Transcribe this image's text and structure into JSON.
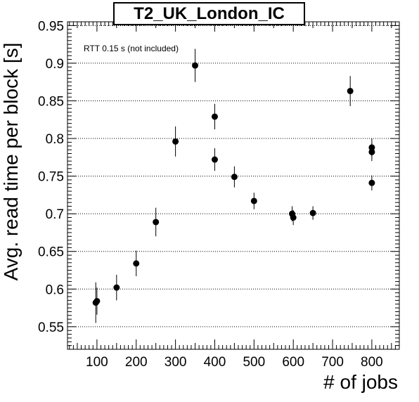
{
  "chart_data": {
    "type": "scatter",
    "title": "T2_UK_London_IC",
    "xlabel": "# of jobs",
    "ylabel": "Avg. read time per block [s]",
    "annotation": "RTT 0.15 s (not included)",
    "xlim": [
      25,
      870
    ],
    "ylim": [
      0.52,
      0.955
    ],
    "x_ticks": [
      100,
      200,
      300,
      400,
      500,
      600,
      700,
      800
    ],
    "y_ticks": [
      0.55,
      0.6,
      0.65,
      0.7,
      0.75,
      0.8,
      0.85,
      0.9,
      0.95
    ],
    "x_tick_labels": [
      "100",
      "200",
      "300",
      "400",
      "500",
      "600",
      "700",
      "800"
    ],
    "y_tick_labels": [
      "0.55",
      "0.6",
      "0.65",
      "0.7",
      "0.75",
      "0.8",
      "0.85",
      "0.9",
      "0.95"
    ],
    "grid": "horizontal dotted",
    "marker_color": "#000000",
    "points": [
      {
        "x": 97,
        "y": 0.582,
        "err": 0.027
      },
      {
        "x": 100,
        "y": 0.584,
        "err": 0.018
      },
      {
        "x": 150,
        "y": 0.602,
        "err": 0.017
      },
      {
        "x": 200,
        "y": 0.634,
        "err": 0.017
      },
      {
        "x": 250,
        "y": 0.689,
        "err": 0.019
      },
      {
        "x": 300,
        "y": 0.796,
        "err": 0.02
      },
      {
        "x": 350,
        "y": 0.897,
        "err": 0.022
      },
      {
        "x": 400,
        "y": 0.829,
        "err": 0.017
      },
      {
        "x": 400,
        "y": 0.772,
        "err": 0.015
      },
      {
        "x": 450,
        "y": 0.749,
        "err": 0.014
      },
      {
        "x": 500,
        "y": 0.717,
        "err": 0.011
      },
      {
        "x": 597,
        "y": 0.7,
        "err": 0.01
      },
      {
        "x": 600,
        "y": 0.695,
        "err": 0.01
      },
      {
        "x": 650,
        "y": 0.701,
        "err": 0.009
      },
      {
        "x": 745,
        "y": 0.863,
        "err": 0.02
      },
      {
        "x": 800,
        "y": 0.788,
        "err": 0.012
      },
      {
        "x": 800,
        "y": 0.782,
        "err": 0.012
      },
      {
        "x": 800,
        "y": 0.741,
        "err": 0.01
      }
    ]
  }
}
